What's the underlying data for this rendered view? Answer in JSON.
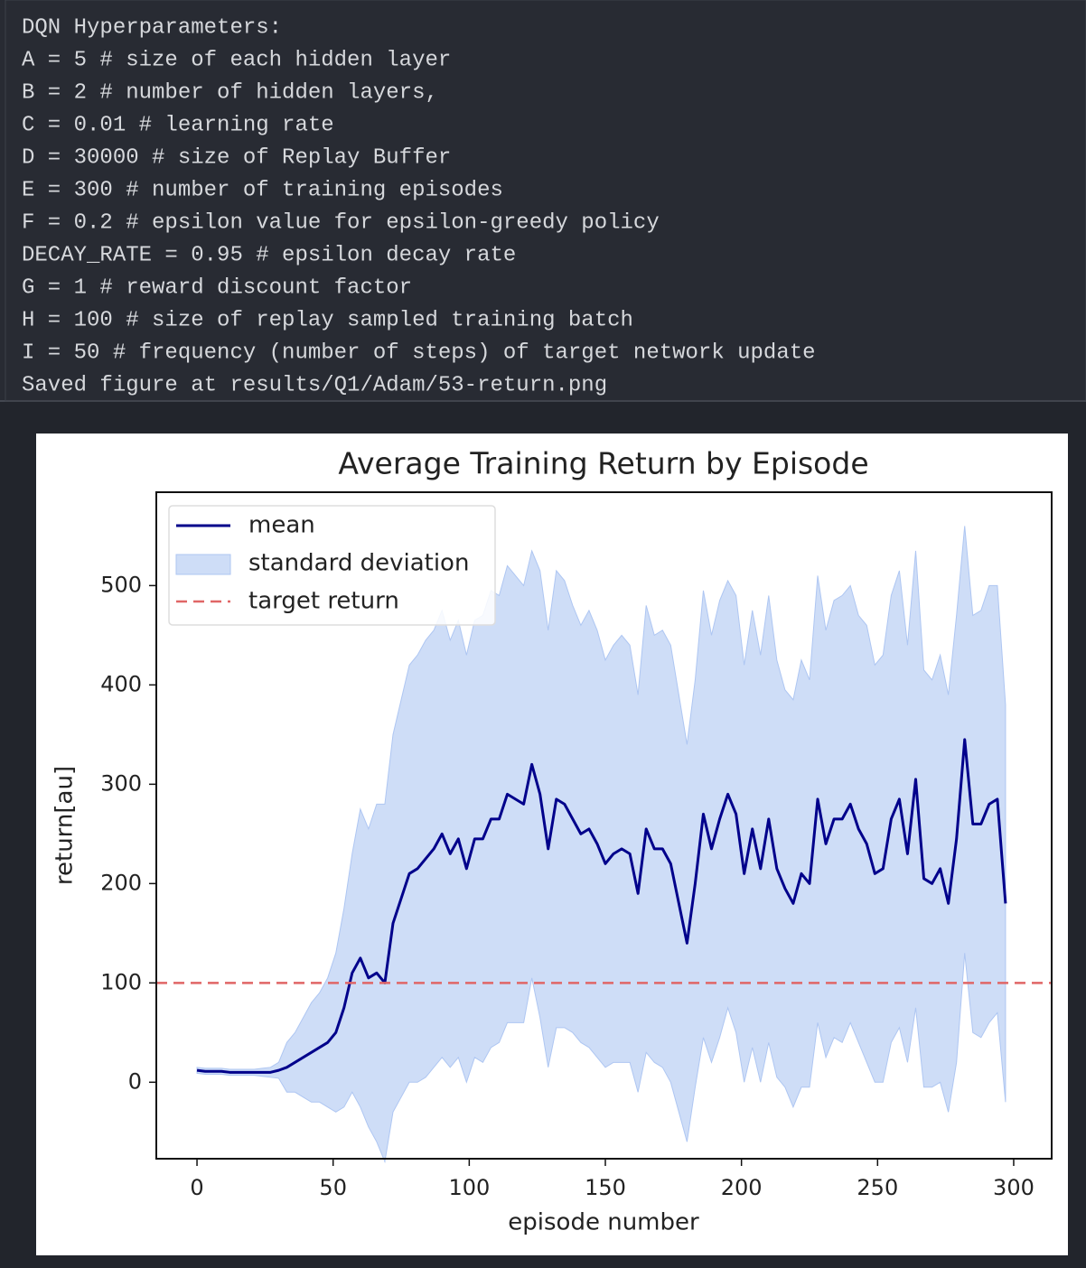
{
  "output": {
    "lines": [
      "DQN Hyperparameters:",
      "A = 5 # size of each hidden layer",
      "B = 2 # number of hidden layers,",
      "C = 0.01 # learning rate",
      "D = 30000 # size of Replay Buffer",
      "E = 300 # number of training episodes",
      "F = 0.2 # epsilon value for epsilon-greedy policy",
      "DECAY_RATE = 0.95 # epsilon decay rate",
      "G = 1 # reward discount factor",
      "H = 100 # size of replay sampled training batch",
      "I = 50 # frequency (number of steps) of target network update",
      "Saved figure at results/Q1/Adam/53-return.png"
    ]
  },
  "chart_data": {
    "type": "line",
    "title": "Average Training Return by Episode",
    "xlabel": "episode number",
    "ylabel": "return[au]",
    "x": [
      0,
      3,
      6,
      9,
      12,
      15,
      18,
      21,
      24,
      27,
      30,
      33,
      36,
      39,
      42,
      45,
      48,
      51,
      54,
      57,
      60,
      63,
      66,
      69,
      72,
      75,
      78,
      81,
      84,
      87,
      90,
      93,
      96,
      99,
      102,
      105,
      108,
      111,
      114,
      117,
      120,
      123,
      126,
      129,
      132,
      135,
      138,
      141,
      144,
      147,
      150,
      153,
      156,
      159,
      162,
      165,
      168,
      171,
      174,
      177,
      180,
      183,
      186,
      189,
      192,
      195,
      198,
      201,
      204,
      207,
      210,
      213,
      216,
      219,
      222,
      225,
      228,
      231,
      234,
      237,
      240,
      243,
      246,
      249,
      252,
      255,
      258,
      261,
      264,
      267,
      270,
      273,
      276,
      279,
      282,
      285,
      288,
      291,
      294,
      297
    ],
    "series": [
      {
        "name": "mean",
        "color": "#00008b",
        "values": [
          12,
          11,
          11,
          11,
          10,
          10,
          10,
          10,
          10,
          10,
          12,
          15,
          20,
          25,
          30,
          35,
          40,
          50,
          75,
          110,
          125,
          105,
          110,
          100,
          160,
          185,
          210,
          215,
          225,
          235,
          250,
          230,
          245,
          215,
          245,
          245,
          265,
          265,
          290,
          285,
          280,
          320,
          290,
          235,
          285,
          280,
          265,
          250,
          255,
          240,
          220,
          230,
          235,
          230,
          190,
          255,
          235,
          235,
          220,
          180,
          140,
          200,
          270,
          235,
          265,
          290,
          270,
          210,
          255,
          215,
          265,
          215,
          195,
          180,
          210,
          200,
          285,
          240,
          265,
          265,
          280,
          255,
          240,
          210,
          215,
          265,
          285,
          230,
          305,
          205,
          200,
          215,
          180,
          245,
          345,
          260,
          260,
          280,
          285,
          180
        ]
      },
      {
        "name": "standard deviation",
        "color": "#aec6f2",
        "values": [
          3,
          3,
          3,
          3,
          3,
          3,
          3,
          3,
          4,
          5,
          8,
          25,
          30,
          40,
          50,
          55,
          65,
          80,
          100,
          120,
          150,
          150,
          170,
          180,
          190,
          200,
          210,
          215,
          220,
          220,
          225,
          215,
          220,
          215,
          220,
          225,
          230,
          225,
          230,
          225,
          220,
          215,
          225,
          220,
          230,
          225,
          215,
          210,
          220,
          215,
          205,
          210,
          215,
          210,
          200,
          225,
          215,
          220,
          220,
          210,
          200,
          205,
          225,
          215,
          220,
          215,
          220,
          210,
          220,
          215,
          225,
          210,
          200,
          205,
          215,
          205,
          225,
          215,
          220,
          225,
          220,
          215,
          220,
          210,
          215,
          225,
          230,
          210,
          230,
          210,
          205,
          215,
          210,
          225,
          215,
          210,
          215,
          220,
          215,
          200
        ]
      }
    ],
    "hlines": [
      {
        "name": "target return",
        "value": 100,
        "color": "#e06666"
      }
    ],
    "xlim": [
      -14.95,
      313.95
    ],
    "ylim": [
      -77,
      594
    ],
    "xticks": [
      0,
      50,
      100,
      150,
      200,
      250,
      300
    ],
    "yticks": [
      0,
      100,
      200,
      300,
      400,
      500
    ],
    "legend": "upper left"
  }
}
